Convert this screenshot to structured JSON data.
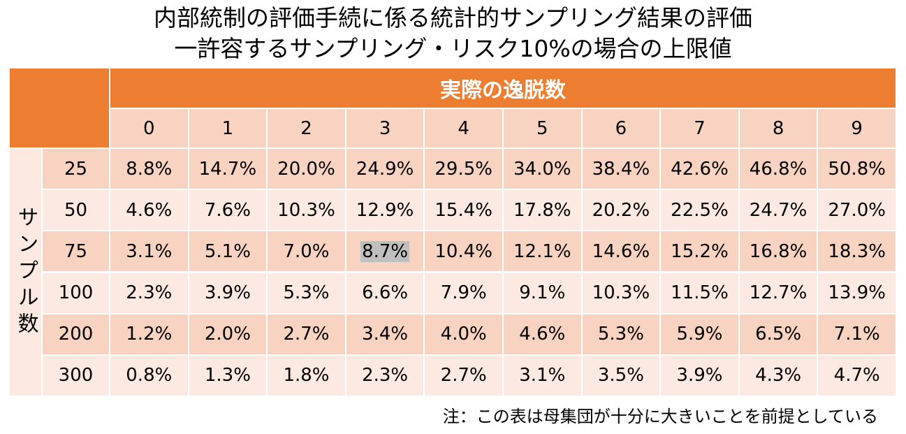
{
  "title": {
    "line1": "内部統制の評価手続に係る統計的サンプリング結果の評価",
    "line2": "一許容するサンプリング・リスク10%の場合の上限値"
  },
  "table": {
    "column_group_label": "実際の逸脱数",
    "row_group_label": "サンプル数",
    "columns": [
      "0",
      "1",
      "2",
      "3",
      "4",
      "5",
      "6",
      "7",
      "8",
      "9"
    ],
    "rows": [
      {
        "sample": "25",
        "cells": [
          "8.8%",
          "14.7%",
          "20.0%",
          "24.9%",
          "29.5%",
          "34.0%",
          "38.4%",
          "42.6%",
          "46.8%",
          "50.8%"
        ]
      },
      {
        "sample": "50",
        "cells": [
          "4.6%",
          "7.6%",
          "10.3%",
          "12.9%",
          "15.4%",
          "17.8%",
          "20.2%",
          "22.5%",
          "24.7%",
          "27.0%"
        ]
      },
      {
        "sample": "75",
        "cells": [
          "3.1%",
          "5.1%",
          "7.0%",
          "8.7%",
          "10.4%",
          "12.1%",
          "14.6%",
          "15.2%",
          "16.8%",
          "18.3%"
        ]
      },
      {
        "sample": "100",
        "cells": [
          "2.3%",
          "3.9%",
          "5.3%",
          "6.6%",
          "7.9%",
          "9.1%",
          "10.3%",
          "11.5%",
          "12.7%",
          "13.9%"
        ]
      },
      {
        "sample": "200",
        "cells": [
          "1.2%",
          "2.0%",
          "2.7%",
          "3.4%",
          "4.0%",
          "4.6%",
          "5.3%",
          "5.9%",
          "6.5%",
          "7.1%"
        ]
      },
      {
        "sample": "300",
        "cells": [
          "0.8%",
          "1.3%",
          "1.8%",
          "2.3%",
          "2.7%",
          "3.1%",
          "3.5%",
          "3.9%",
          "4.3%",
          "4.7%"
        ]
      }
    ],
    "highlighted_cell": {
      "row": 2,
      "column": 3
    }
  },
  "note": "注：この表は母集団が十分に大きいことを前提としている"
}
